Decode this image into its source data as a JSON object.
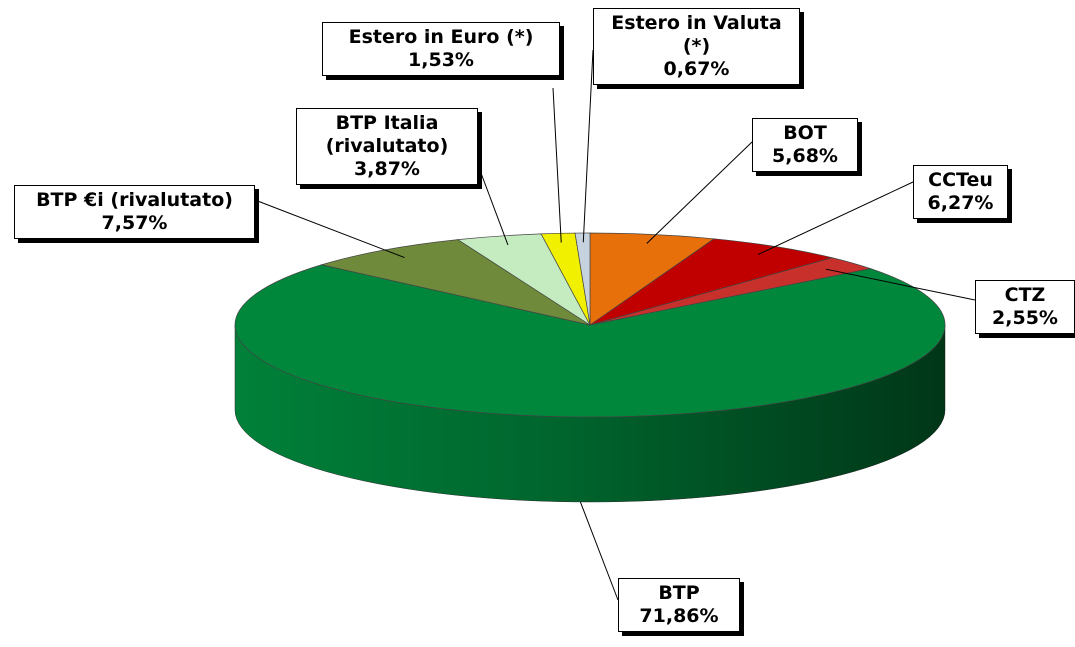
{
  "chart_data": {
    "type": "pie",
    "categories": [
      "BOT",
      "CCTeu",
      "CTZ",
      "BTP",
      "BTP €i (rivalutato)",
      "BTP Italia (rivalutato)",
      "Estero in Euro (*)",
      "Estero in Valuta (*)"
    ],
    "values": [
      5.68,
      6.27,
      2.55,
      71.86,
      7.57,
      3.87,
      1.53,
      0.67
    ],
    "value_labels": [
      "5,68%",
      "6,27%",
      "2,55%",
      "71,86%",
      "7,57%",
      "3,87%",
      "1,53%",
      "0,67%"
    ],
    "colors": [
      "#e8700a",
      "#c00000",
      "#c8302c",
      "#00873c",
      "#6f8a3a",
      "#c4ecc0",
      "#f0f000",
      "#c6d2de"
    ]
  }
}
